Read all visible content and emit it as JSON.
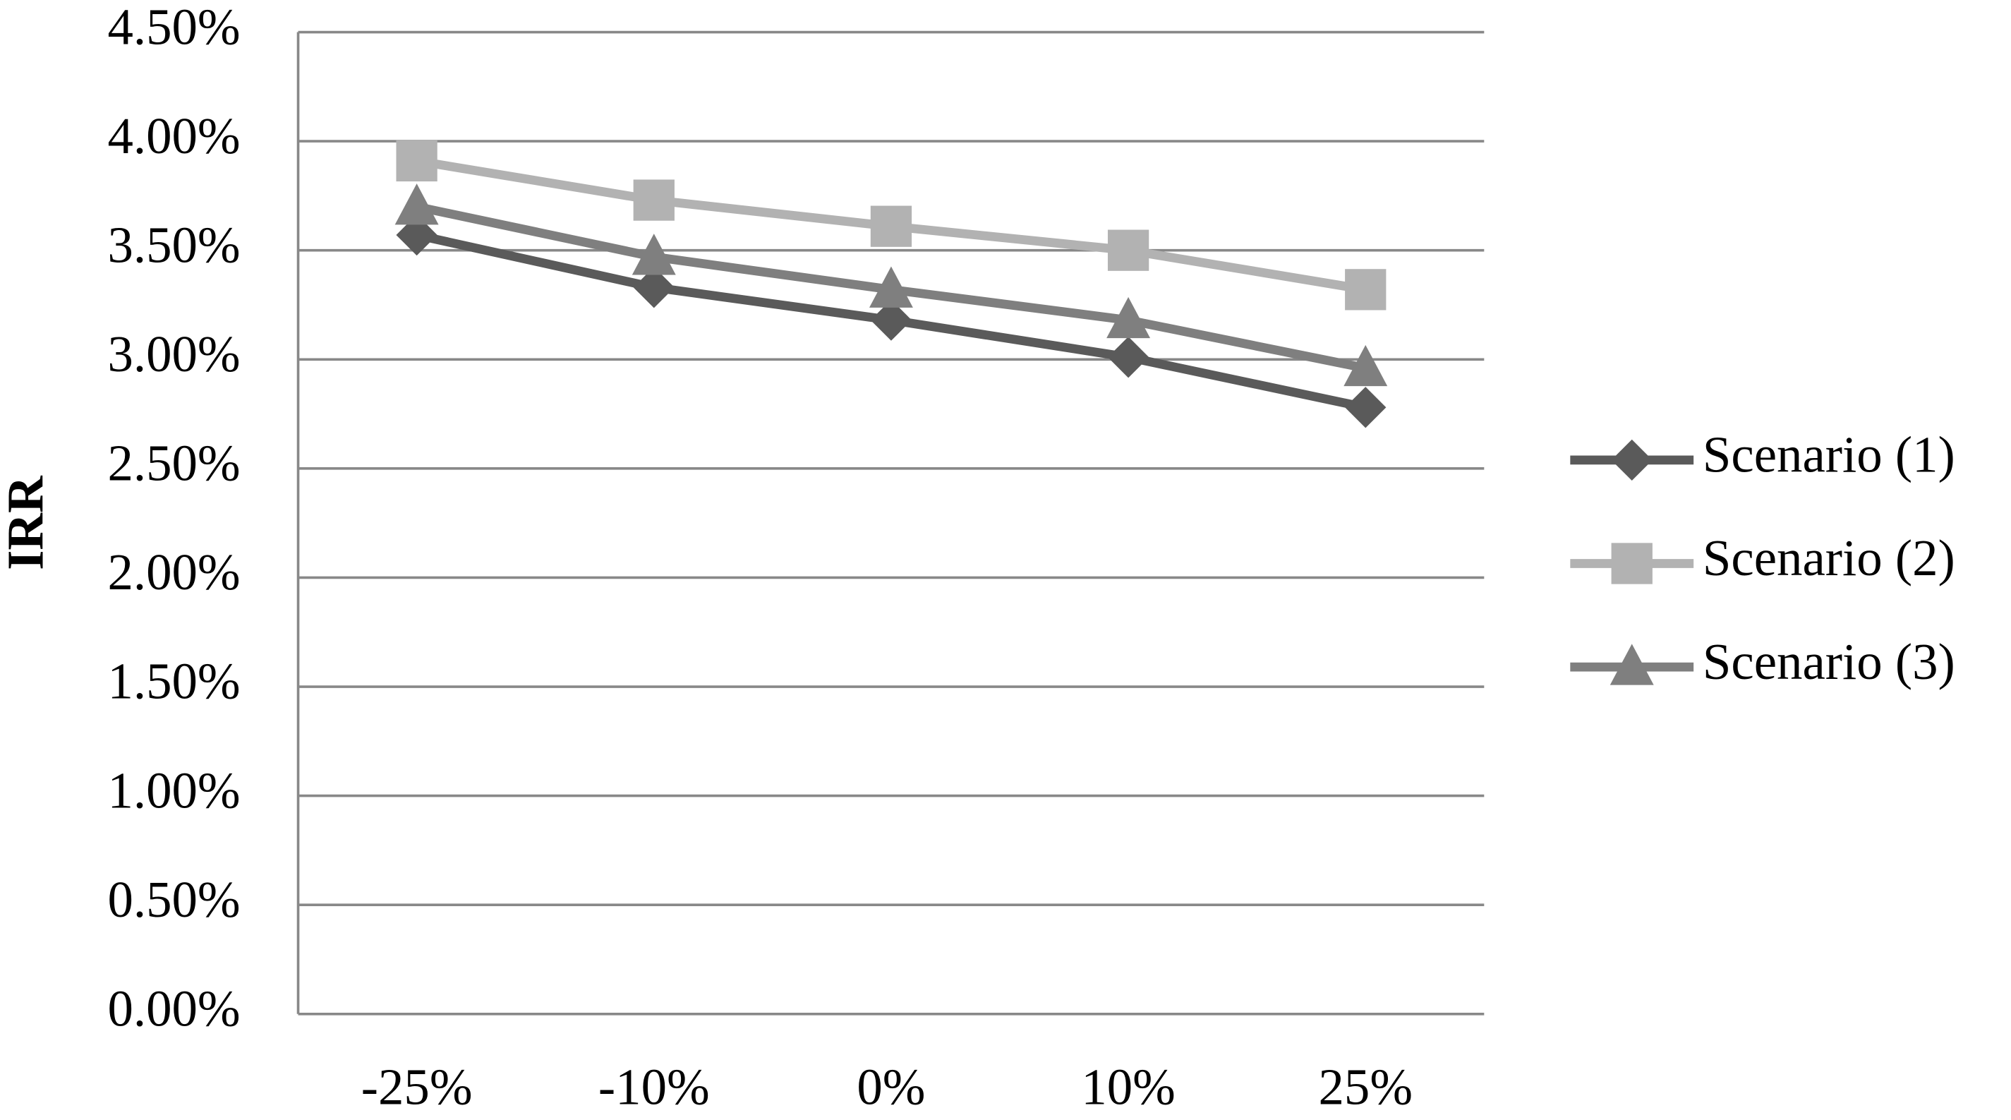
{
  "chart_data": {
    "type": "line",
    "y_label": "IRR",
    "categories": [
      "-25%",
      "-10%",
      "0%",
      "10%",
      "25%"
    ],
    "series": [
      {
        "name": "Scenario (1)",
        "color": "#5a5a5a",
        "marker": "diamond",
        "values": [
          3.57,
          3.33,
          3.18,
          3.01,
          2.78
        ]
      },
      {
        "name": "Scenario (2)",
        "color": "#b2b2b2",
        "marker": "square",
        "values": [
          3.91,
          3.73,
          3.61,
          3.5,
          3.32
        ]
      },
      {
        "name": "Scenario (3)",
        "color": "#7f7f7f",
        "marker": "triangle",
        "values": [
          3.7,
          3.47,
          3.32,
          3.18,
          2.96
        ]
      }
    ],
    "ylim": [
      0,
      4.5
    ],
    "yticks": [
      {
        "value": 0,
        "label": "0.00%"
      },
      {
        "value": 0.5,
        "label": "0.50%"
      },
      {
        "value": 1,
        "label": "1.00%"
      },
      {
        "value": 1.5,
        "label": "1.50%"
      },
      {
        "value": 2,
        "label": "2.00%"
      },
      {
        "value": 2.5,
        "label": "2.50%"
      },
      {
        "value": 3,
        "label": "3.00%"
      },
      {
        "value": 3.5,
        "label": "3.50%"
      },
      {
        "value": 4,
        "label": "4.00%"
      },
      {
        "value": 4.5,
        "label": "4.50%"
      }
    ],
    "grid": true,
    "legend": "right"
  }
}
